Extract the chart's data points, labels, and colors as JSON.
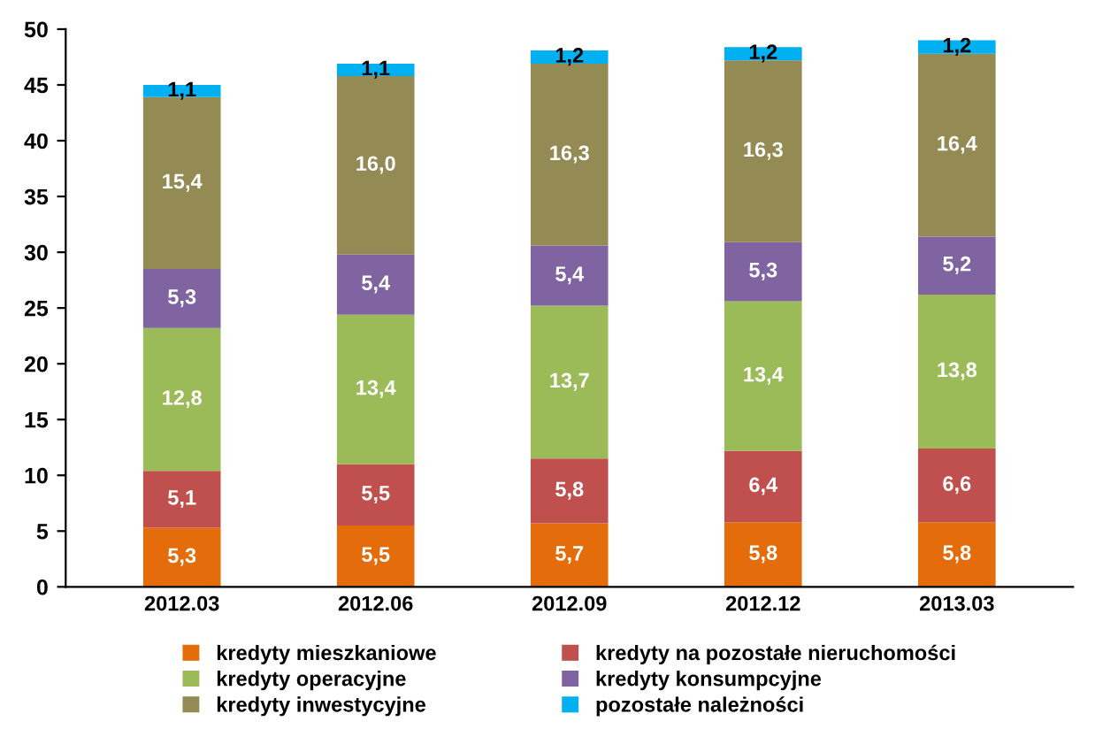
{
  "chart_data": {
    "type": "bar",
    "stacked": true,
    "categories": [
      "2012.03",
      "2012.06",
      "2012.09",
      "2012.12",
      "2013.03"
    ],
    "ylim": [
      0,
      50
    ],
    "yticks": [
      0,
      5,
      10,
      15,
      20,
      25,
      30,
      35,
      40,
      45,
      50
    ],
    "grid": false,
    "legend": "bottom",
    "series": [
      {
        "name": "kredyty mieszkaniowe",
        "color": "#e46c0a",
        "values": [
          5.3,
          5.5,
          5.7,
          5.8,
          5.8
        ],
        "value_labels": [
          "5,3",
          "5,5",
          "5,7",
          "5,8",
          "5,8"
        ]
      },
      {
        "name": "kredyty na pozostałe nieruchomości",
        "color": "#c0504d",
        "values": [
          5.1,
          5.5,
          5.8,
          6.4,
          6.6
        ],
        "value_labels": [
          "5,1",
          "5,5",
          "5,8",
          "6,4",
          "6,6"
        ]
      },
      {
        "name": "kredyty operacyjne",
        "color": "#9bbb59",
        "values": [
          12.8,
          13.4,
          13.7,
          13.4,
          13.8
        ],
        "value_labels": [
          "12,8",
          "13,4",
          "13,7",
          "13,4",
          "13,8"
        ]
      },
      {
        "name": "kredyty konsumpcyjne",
        "color": "#8064a2",
        "values": [
          5.3,
          5.4,
          5.4,
          5.3,
          5.2
        ],
        "value_labels": [
          "5,3",
          "5,4",
          "5,4",
          "5,3",
          "5,2"
        ]
      },
      {
        "name": "kredyty inwestycyjne",
        "color": "#948a54",
        "values": [
          15.4,
          16.0,
          16.3,
          16.3,
          16.4
        ],
        "value_labels": [
          "15,4",
          "16,0",
          "16,3",
          "16,3",
          "16,4"
        ]
      },
      {
        "name": "pozostałe należności",
        "color": "#00b0f0",
        "values": [
          1.1,
          1.1,
          1.2,
          1.2,
          1.2
        ],
        "value_labels": [
          "1,1",
          "1,1",
          "1,2",
          "1,2",
          "1,2"
        ]
      }
    ]
  }
}
